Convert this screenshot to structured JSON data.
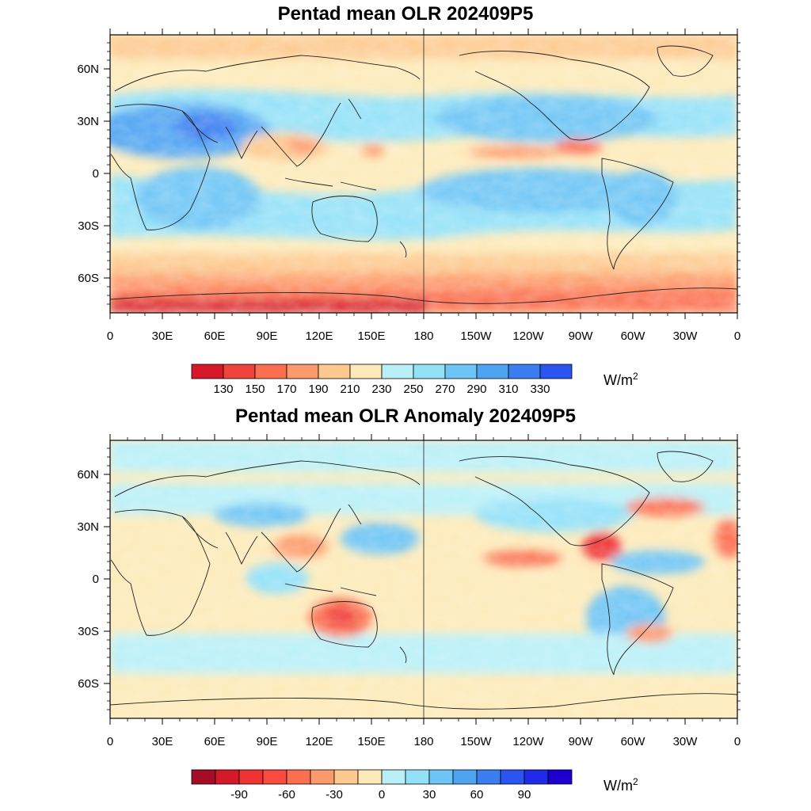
{
  "panels": [
    {
      "title": "Pentad mean OLR 202409P5",
      "lat_labels": [
        "60N",
        "30N",
        "0",
        "30S",
        "60S"
      ],
      "lon_labels": [
        "0",
        "30E",
        "60E",
        "90E",
        "120E",
        "150E",
        "180",
        "150W",
        "120W",
        "90W",
        "60W",
        "30W",
        "0"
      ],
      "colorbar": {
        "colors": [
          "#d7172a",
          "#f0433c",
          "#fb6e4f",
          "#fd9a6b",
          "#fdc98e",
          "#fdeab8",
          "#b9f0f8",
          "#93e1f8",
          "#6dc5f5",
          "#4fa4f2",
          "#3a7ef0",
          "#2b55f0"
        ],
        "labels": [
          "130",
          "150",
          "170",
          "190",
          "210",
          "230",
          "250",
          "270",
          "290",
          "310",
          "330"
        ]
      },
      "units_base": "W/m",
      "units_exp": "2"
    },
    {
      "title": "Pentad mean OLR Anomaly 202409P5",
      "lat_labels": [
        "60N",
        "30N",
        "0",
        "30S",
        "60S"
      ],
      "lon_labels": [
        "0",
        "30E",
        "60E",
        "90E",
        "120E",
        "150E",
        "180",
        "150W",
        "120W",
        "90W",
        "60W",
        "30W",
        "0"
      ],
      "colorbar": {
        "colors": [
          "#a50d26",
          "#d41a2a",
          "#ef3333",
          "#fb4a3f",
          "#fb6e4f",
          "#fd9a6b",
          "#fdc98e",
          "#fdeab8",
          "#b9f0f8",
          "#93e1f8",
          "#6dc5f5",
          "#4fa4f2",
          "#3a7ef0",
          "#2b55f0",
          "#1e2be8",
          "#1d00d0"
        ],
        "labels": [
          "-90",
          "-60",
          "-30",
          "0",
          "30",
          "60",
          "90"
        ]
      },
      "units_base": "W/m",
      "units_exp": "2"
    }
  ]
}
